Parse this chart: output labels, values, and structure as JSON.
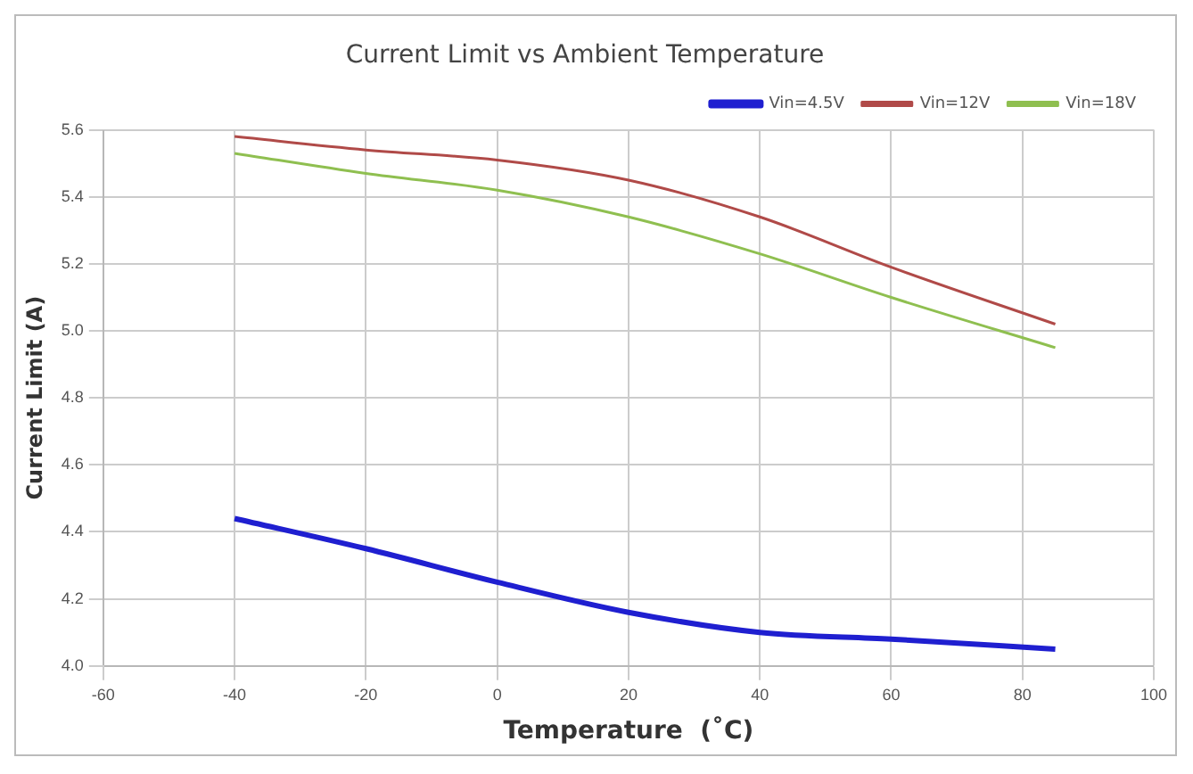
{
  "chart_data": {
    "type": "line",
    "title": "Current Limit vs Ambient Temperature",
    "xlabel": "Temperature  (˚C)",
    "ylabel": "Current Limit (A)",
    "x": [
      -40,
      -20,
      0,
      20,
      40,
      60,
      85
    ],
    "series": [
      {
        "name": "Vin=4.5V",
        "color": "#1f1fd0",
        "values": [
          4.44,
          4.35,
          4.25,
          4.16,
          4.1,
          4.08,
          4.05
        ]
      },
      {
        "name": "Vin=12V",
        "color": "#b04a48",
        "values": [
          5.58,
          5.54,
          5.51,
          5.45,
          5.34,
          5.19,
          5.02
        ]
      },
      {
        "name": "Vin=18V",
        "color": "#8fbf50",
        "values": [
          5.53,
          5.47,
          5.42,
          5.34,
          5.23,
          5.1,
          4.95
        ]
      }
    ],
    "xlim": [
      -60,
      100
    ],
    "xticks": [
      -60,
      -40,
      -20,
      0,
      20,
      40,
      60,
      80,
      100
    ],
    "ylim": [
      4.0,
      5.6
    ],
    "yticks": [
      {
        "value": 4.0,
        "label": "4.0"
      },
      {
        "value": 4.2,
        "label": "4.2"
      },
      {
        "value": 4.4,
        "label": "4.4"
      },
      {
        "value": 4.6,
        "label": "4.6"
      },
      {
        "value": 4.8,
        "label": "4.8"
      },
      {
        "value": 5.0,
        "label": "5.0"
      },
      {
        "value": 5.2,
        "label": "5.2"
      },
      {
        "value": 5.4,
        "label": "5.4"
      },
      {
        "value": 5.6,
        "label": "5.6"
      }
    ],
    "grid": true,
    "legend": "top right",
    "marker": "none",
    "line_style": "solid"
  }
}
